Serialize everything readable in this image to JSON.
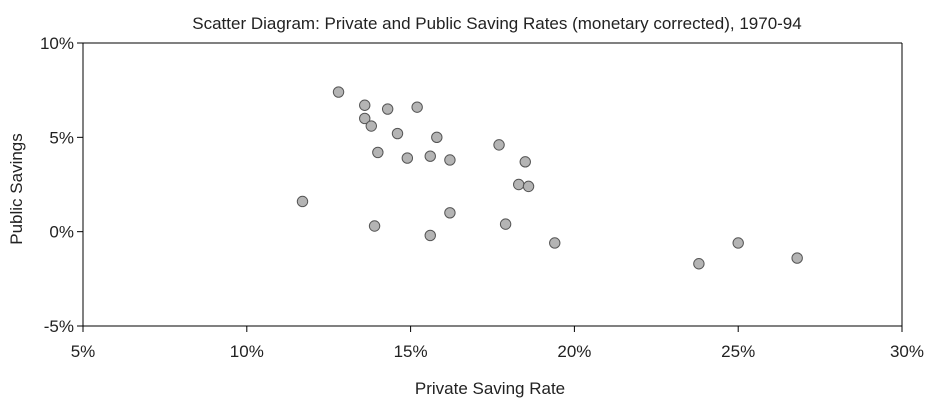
{
  "chart_data": {
    "type": "scatter",
    "title": "Scatter Diagram: Private and Public Saving Rates (monetary corrected), 1970-94",
    "xlabel": "Private Saving Rate",
    "ylabel": "Public Savings",
    "xlim": [
      0.05,
      0.3
    ],
    "ylim": [
      -0.05,
      0.1
    ],
    "x_ticks": [
      {
        "value": 0.05,
        "label": "5%"
      },
      {
        "value": 0.1,
        "label": "10%"
      },
      {
        "value": 0.15,
        "label": "15%"
      },
      {
        "value": 0.2,
        "label": "20%"
      },
      {
        "value": 0.25,
        "label": "25%"
      },
      {
        "value": 0.3,
        "label": "30%"
      }
    ],
    "y_ticks": [
      {
        "value": 0.1,
        "label": "10%"
      },
      {
        "value": 0.05,
        "label": "5%"
      },
      {
        "value": 0.0,
        "label": "0%"
      },
      {
        "value": -0.05,
        "label": "-5%"
      }
    ],
    "grid": false,
    "marker_color": "#b4b4b4",
    "series": [
      {
        "points": [
          {
            "x": 0.117,
            "y": 0.016
          },
          {
            "x": 0.128,
            "y": 0.074
          },
          {
            "x": 0.136,
            "y": 0.067
          },
          {
            "x": 0.136,
            "y": 0.06
          },
          {
            "x": 0.138,
            "y": 0.056
          },
          {
            "x": 0.139,
            "y": 0.003
          },
          {
            "x": 0.14,
            "y": 0.042
          },
          {
            "x": 0.143,
            "y": 0.065
          },
          {
            "x": 0.146,
            "y": 0.052
          },
          {
            "x": 0.149,
            "y": 0.039
          },
          {
            "x": 0.152,
            "y": 0.066
          },
          {
            "x": 0.156,
            "y": 0.04
          },
          {
            "x": 0.156,
            "y": -0.002
          },
          {
            "x": 0.158,
            "y": 0.05
          },
          {
            "x": 0.162,
            "y": 0.038
          },
          {
            "x": 0.162,
            "y": 0.01
          },
          {
            "x": 0.177,
            "y": 0.046
          },
          {
            "x": 0.179,
            "y": 0.004
          },
          {
            "x": 0.183,
            "y": 0.025
          },
          {
            "x": 0.185,
            "y": 0.037
          },
          {
            "x": 0.186,
            "y": 0.024
          },
          {
            "x": 0.194,
            "y": -0.006
          },
          {
            "x": 0.238,
            "y": -0.017
          },
          {
            "x": 0.25,
            "y": -0.006
          },
          {
            "x": 0.268,
            "y": -0.014
          }
        ]
      }
    ]
  }
}
